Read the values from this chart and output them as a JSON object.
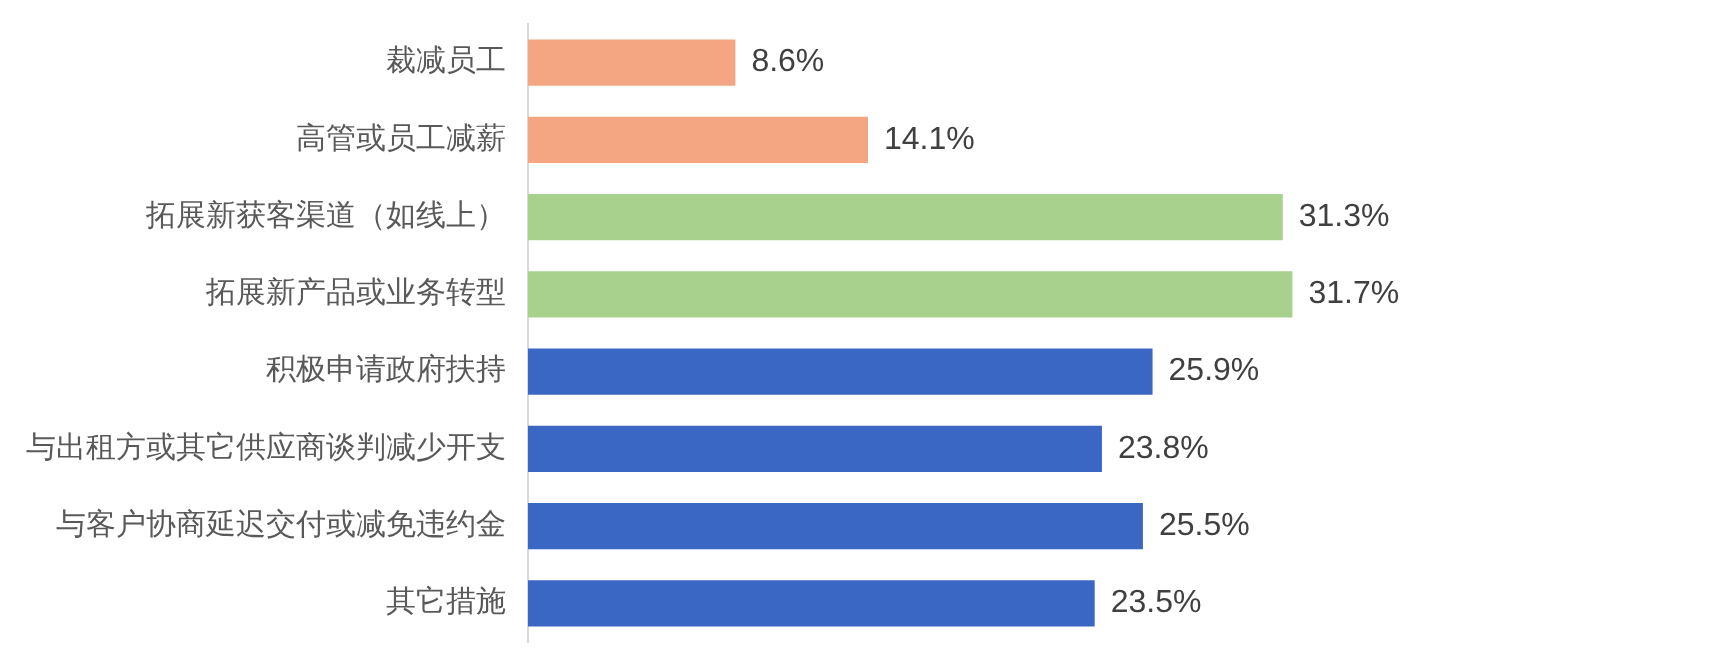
{
  "chart_data": {
    "type": "bar",
    "orientation": "horizontal",
    "categories": [
      "裁减员工",
      "高管或员工减薪",
      "拓展新获客渠道（如线上）",
      "拓展新产品或业务转型",
      "积极申请政府扶持",
      "与出租方或其它供应商谈判减少开支",
      "与客户协商延迟交付或减免违约金",
      "其它措施"
    ],
    "values": [
      8.6,
      14.1,
      31.3,
      31.7,
      25.9,
      23.8,
      25.5,
      23.5
    ],
    "colors": [
      "#f4a582",
      "#f4a582",
      "#a9d18e",
      "#a9d18e",
      "#3a66c4",
      "#3a66c4",
      "#3a66c4",
      "#3a66c4"
    ],
    "value_labels": [
      "8.6%",
      "14.1%",
      "31.3%",
      "31.7%",
      "25.9%",
      "23.8%",
      "25.5%",
      "23.5%"
    ],
    "grid": false,
    "legend": false
  }
}
